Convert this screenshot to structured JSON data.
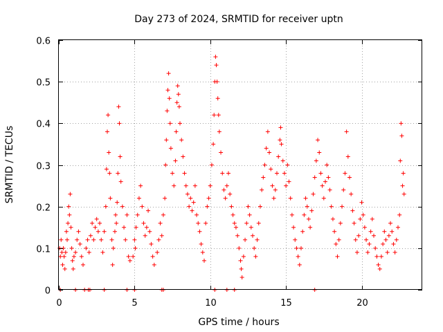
{
  "chart_data": {
    "type": "scatter",
    "title": "Day 273 of 2024, SRMTID for receiver uptn",
    "xlabel": "GPS time / hours",
    "ylabel": "SRMTID / TECUs",
    "xlim": [
      0,
      24
    ],
    "ylim": [
      0,
      0.6
    ],
    "xticks": [
      0,
      5,
      10,
      15,
      20
    ],
    "xtick_labels": [
      "0",
      "5",
      "10",
      "15",
      "20"
    ],
    "yticks": [
      0,
      0.1,
      0.2,
      0.3,
      0.4,
      0.5,
      0.6
    ],
    "ytick_labels": [
      "0",
      "0.1",
      "0.2",
      "0.3",
      "0.4",
      "0.5",
      "0.6"
    ],
    "grid": true,
    "marker": "plus",
    "color": "#ff0000",
    "series": [
      {
        "name": "SRMTID",
        "points": [
          [
            0.05,
            0.1
          ],
          [
            0.1,
            0.08
          ],
          [
            0.15,
            0.12
          ],
          [
            0.2,
            0.09
          ],
          [
            0.25,
            0.06
          ],
          [
            0.3,
            0.1
          ],
          [
            0.35,
            0.08
          ],
          [
            0.4,
            0.05
          ],
          [
            0.45,
            0.09
          ],
          [
            0.5,
            0.14
          ],
          [
            0.55,
            0.12
          ],
          [
            0.6,
            0.16
          ],
          [
            0.65,
            0.2
          ],
          [
            0.7,
            0.18
          ],
          [
            0.75,
            0.23
          ],
          [
            0.8,
            0.15
          ],
          [
            0.85,
            0.1
          ],
          [
            0.9,
            0.07
          ],
          [
            0.95,
            0.05
          ],
          [
            1.0,
            0.08
          ],
          [
            1.1,
            0.09
          ],
          [
            1.2,
            0.12
          ],
          [
            1.3,
            0.14
          ],
          [
            1.4,
            0.11
          ],
          [
            1.5,
            0.08
          ],
          [
            1.6,
            0.06
          ],
          [
            1.8,
            0.1
          ],
          [
            1.9,
            0.12
          ],
          [
            2.0,
            0.09
          ],
          [
            2.1,
            0.13
          ],
          [
            2.2,
            0.16
          ],
          [
            2.3,
            0.12
          ],
          [
            2.4,
            0.15
          ],
          [
            2.5,
            0.17
          ],
          [
            2.6,
            0.14
          ],
          [
            2.7,
            0.16
          ],
          [
            2.8,
            0.12
          ],
          [
            2.9,
            0.09
          ],
          [
            3.0,
            0.14
          ],
          [
            3.1,
            0.2
          ],
          [
            3.15,
            0.29
          ],
          [
            3.2,
            0.38
          ],
          [
            3.25,
            0.42
          ],
          [
            3.3,
            0.33
          ],
          [
            3.35,
            0.28
          ],
          [
            3.4,
            0.22
          ],
          [
            3.5,
            0.12
          ],
          [
            3.55,
            0.06
          ],
          [
            3.6,
            0.1
          ],
          [
            3.7,
            0.14
          ],
          [
            3.75,
            0.18
          ],
          [
            3.8,
            0.16
          ],
          [
            3.85,
            0.21
          ],
          [
            3.9,
            0.28
          ],
          [
            3.95,
            0.44
          ],
          [
            4.0,
            0.4
          ],
          [
            4.05,
            0.32
          ],
          [
            4.1,
            0.26
          ],
          [
            4.2,
            0.2
          ],
          [
            4.3,
            0.15
          ],
          [
            4.4,
            0.12
          ],
          [
            4.5,
            0.18
          ],
          [
            4.6,
            0.08
          ],
          [
            4.7,
            0.07
          ],
          [
            4.9,
            0.08
          ],
          [
            5.0,
            0.12
          ],
          [
            5.05,
            0.1
          ],
          [
            5.1,
            0.15
          ],
          [
            5.2,
            0.18
          ],
          [
            5.3,
            0.22
          ],
          [
            5.4,
            0.25
          ],
          [
            5.5,
            0.2
          ],
          [
            5.6,
            0.16
          ],
          [
            5.7,
            0.13
          ],
          [
            5.8,
            0.15
          ],
          [
            5.9,
            0.19
          ],
          [
            6.0,
            0.14
          ],
          [
            6.1,
            0.11
          ],
          [
            6.2,
            0.08
          ],
          [
            6.3,
            0.06
          ],
          [
            6.5,
            0.09
          ],
          [
            6.6,
            0.12
          ],
          [
            6.7,
            0.16
          ],
          [
            6.8,
            0.13
          ],
          [
            6.9,
            0.18
          ],
          [
            7.0,
            0.22
          ],
          [
            7.05,
            0.3
          ],
          [
            7.1,
            0.36
          ],
          [
            7.15,
            0.43
          ],
          [
            7.2,
            0.48
          ],
          [
            7.25,
            0.52
          ],
          [
            7.3,
            0.46
          ],
          [
            7.35,
            0.4
          ],
          [
            7.4,
            0.34
          ],
          [
            7.5,
            0.28
          ],
          [
            7.6,
            0.25
          ],
          [
            7.7,
            0.31
          ],
          [
            7.75,
            0.38
          ],
          [
            7.8,
            0.45
          ],
          [
            7.85,
            0.49
          ],
          [
            7.9,
            0.47
          ],
          [
            7.95,
            0.44
          ],
          [
            8.0,
            0.4
          ],
          [
            8.1,
            0.36
          ],
          [
            8.2,
            0.32
          ],
          [
            8.3,
            0.28
          ],
          [
            8.4,
            0.25
          ],
          [
            8.5,
            0.23
          ],
          [
            8.6,
            0.2
          ],
          [
            8.7,
            0.22
          ],
          [
            8.8,
            0.19
          ],
          [
            8.9,
            0.21
          ],
          [
            9.0,
            0.25
          ],
          [
            9.1,
            0.18
          ],
          [
            9.2,
            0.16
          ],
          [
            9.3,
            0.14
          ],
          [
            9.4,
            0.11
          ],
          [
            9.5,
            0.09
          ],
          [
            9.6,
            0.07
          ],
          [
            9.7,
            0.16
          ],
          [
            9.8,
            0.2
          ],
          [
            9.9,
            0.22
          ],
          [
            10.0,
            0.25
          ],
          [
            10.1,
            0.3
          ],
          [
            10.2,
            0.35
          ],
          [
            10.25,
            0.42
          ],
          [
            10.3,
            0.5
          ],
          [
            10.35,
            0.56
          ],
          [
            10.4,
            0.54
          ],
          [
            10.45,
            0.5
          ],
          [
            10.5,
            0.46
          ],
          [
            10.55,
            0.42
          ],
          [
            10.6,
            0.38
          ],
          [
            10.7,
            0.33
          ],
          [
            10.8,
            0.28
          ],
          [
            10.9,
            0.24
          ],
          [
            11.0,
            0.22
          ],
          [
            11.1,
            0.25
          ],
          [
            11.2,
            0.28
          ],
          [
            11.3,
            0.23
          ],
          [
            11.4,
            0.2
          ],
          [
            11.5,
            0.18
          ],
          [
            11.6,
            0.16
          ],
          [
            11.7,
            0.15
          ],
          [
            11.8,
            0.13
          ],
          [
            11.9,
            0.1
          ],
          [
            12.0,
            0.07
          ],
          [
            12.05,
            0.05
          ],
          [
            12.1,
            0.03
          ],
          [
            12.2,
            0.08
          ],
          [
            12.3,
            0.12
          ],
          [
            12.4,
            0.16
          ],
          [
            12.5,
            0.2
          ],
          [
            12.6,
            0.18
          ],
          [
            12.7,
            0.15
          ],
          [
            12.8,
            0.13
          ],
          [
            12.9,
            0.1
          ],
          [
            13.0,
            0.08
          ],
          [
            13.1,
            0.12
          ],
          [
            13.2,
            0.16
          ],
          [
            13.3,
            0.2
          ],
          [
            13.4,
            0.24
          ],
          [
            13.5,
            0.27
          ],
          [
            13.6,
            0.3
          ],
          [
            13.7,
            0.34
          ],
          [
            13.8,
            0.38
          ],
          [
            13.9,
            0.33
          ],
          [
            14.0,
            0.29
          ],
          [
            14.1,
            0.25
          ],
          [
            14.2,
            0.22
          ],
          [
            14.3,
            0.24
          ],
          [
            14.4,
            0.28
          ],
          [
            14.5,
            0.32
          ],
          [
            14.6,
            0.36
          ],
          [
            14.65,
            0.39
          ],
          [
            14.7,
            0.35
          ],
          [
            14.8,
            0.31
          ],
          [
            14.9,
            0.28
          ],
          [
            15.0,
            0.25
          ],
          [
            15.1,
            0.3
          ],
          [
            15.2,
            0.26
          ],
          [
            15.3,
            0.22
          ],
          [
            15.4,
            0.18
          ],
          [
            15.5,
            0.15
          ],
          [
            15.6,
            0.12
          ],
          [
            15.7,
            0.1
          ],
          [
            15.8,
            0.08
          ],
          [
            15.9,
            0.06
          ],
          [
            16.0,
            0.1
          ],
          [
            16.1,
            0.14
          ],
          [
            16.2,
            0.18
          ],
          [
            16.3,
            0.22
          ],
          [
            16.4,
            0.2
          ],
          [
            16.5,
            0.17
          ],
          [
            16.6,
            0.15
          ],
          [
            16.7,
            0.19
          ],
          [
            16.8,
            0.23
          ],
          [
            16.9,
            0.27
          ],
          [
            17.0,
            0.31
          ],
          [
            17.1,
            0.36
          ],
          [
            17.2,
            0.33
          ],
          [
            17.3,
            0.28
          ],
          [
            17.4,
            0.25
          ],
          [
            17.5,
            0.22
          ],
          [
            17.6,
            0.26
          ],
          [
            17.7,
            0.3
          ],
          [
            17.8,
            0.27
          ],
          [
            17.9,
            0.24
          ],
          [
            18.0,
            0.2
          ],
          [
            18.1,
            0.17
          ],
          [
            18.2,
            0.14
          ],
          [
            18.3,
            0.11
          ],
          [
            18.4,
            0.08
          ],
          [
            18.5,
            0.12
          ],
          [
            18.6,
            0.16
          ],
          [
            18.7,
            0.2
          ],
          [
            18.8,
            0.24
          ],
          [
            18.9,
            0.28
          ],
          [
            19.0,
            0.38
          ],
          [
            19.1,
            0.32
          ],
          [
            19.2,
            0.27
          ],
          [
            19.3,
            0.23
          ],
          [
            19.4,
            0.19
          ],
          [
            19.5,
            0.16
          ],
          [
            19.6,
            0.12
          ],
          [
            19.7,
            0.09
          ],
          [
            19.8,
            0.13
          ],
          [
            19.9,
            0.17
          ],
          [
            20.0,
            0.21
          ],
          [
            20.1,
            0.18
          ],
          [
            20.2,
            0.15
          ],
          [
            20.3,
            0.12
          ],
          [
            20.4,
            0.09
          ],
          [
            20.5,
            0.11
          ],
          [
            20.6,
            0.14
          ],
          [
            20.7,
            0.17
          ],
          [
            20.8,
            0.13
          ],
          [
            20.9,
            0.1
          ],
          [
            21.0,
            0.08
          ],
          [
            21.1,
            0.06
          ],
          [
            21.2,
            0.05
          ],
          [
            21.3,
            0.08
          ],
          [
            21.4,
            0.11
          ],
          [
            21.5,
            0.14
          ],
          [
            21.6,
            0.12
          ],
          [
            21.7,
            0.09
          ],
          [
            21.8,
            0.13
          ],
          [
            21.9,
            0.16
          ],
          [
            22.0,
            0.14
          ],
          [
            22.1,
            0.11
          ],
          [
            22.2,
            0.09
          ],
          [
            22.3,
            0.12
          ],
          [
            22.4,
            0.15
          ],
          [
            22.5,
            0.18
          ],
          [
            22.55,
            0.31
          ],
          [
            22.6,
            0.4
          ],
          [
            22.65,
            0.37
          ],
          [
            22.7,
            0.25
          ],
          [
            22.75,
            0.28
          ],
          [
            22.8,
            0.23
          ],
          [
            0.1,
            0.0
          ],
          [
            1.1,
            0.0
          ],
          [
            1.7,
            0.0
          ],
          [
            1.95,
            0.0
          ],
          [
            2.05,
            0.0
          ],
          [
            3.0,
            0.0
          ],
          [
            4.5,
            0.0
          ],
          [
            5.0,
            0.0
          ],
          [
            6.8,
            0.0
          ],
          [
            6.9,
            0.0
          ],
          [
            10.3,
            0.0
          ],
          [
            11.1,
            0.0
          ],
          [
            11.6,
            0.0
          ],
          [
            16.9,
            0.0
          ]
        ]
      }
    ]
  }
}
